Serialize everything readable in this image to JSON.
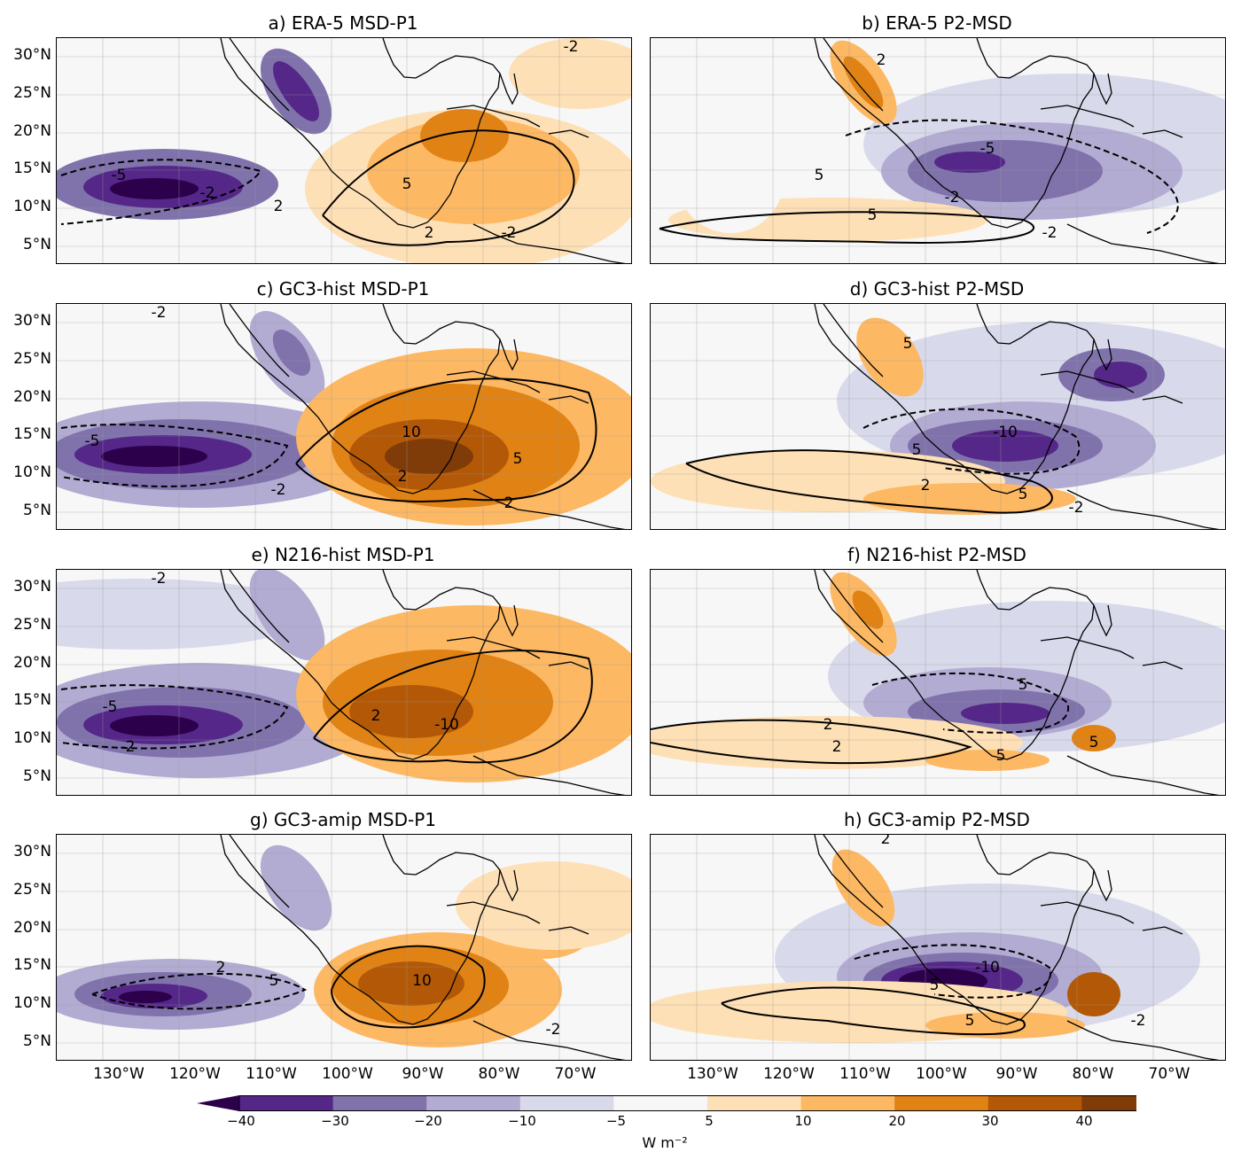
{
  "panels": [
    {
      "title": "a)  ERA-5 MSD-P1",
      "contour_labels": [
        "-2",
        "-5",
        "-2",
        "2",
        "2",
        "5",
        "-2"
      ]
    },
    {
      "title": "b) ERA-5 P2-MSD",
      "contour_labels": [
        "2",
        "-5",
        "-2",
        "5",
        "-2",
        "5"
      ]
    },
    {
      "title": "c)  GC3-hist MSD-P1",
      "contour_labels": [
        "-2",
        "-5",
        "-2",
        "10",
        "2",
        "5",
        "2"
      ]
    },
    {
      "title": "d) GC3-hist P2-MSD",
      "contour_labels": [
        "5",
        "-10",
        "5",
        "2",
        "5",
        "-2"
      ]
    },
    {
      "title": "e)  N216-hist MSD-P1",
      "contour_labels": [
        "-2",
        "-5",
        "-2",
        "-10",
        "2"
      ]
    },
    {
      "title": "f) N216-hist P2-MSD",
      "contour_labels": [
        "5",
        "2",
        "2",
        "5",
        "5"
      ]
    },
    {
      "title": "g)  GC3-amip MSD-P1",
      "contour_labels": [
        "2",
        "5",
        "10",
        "-2"
      ]
    },
    {
      "title": "h) GC3-amip P2-MSD",
      "contour_labels": [
        "2",
        "-10",
        "5",
        "5",
        "-2"
      ]
    }
  ],
  "lat_labels": [
    "30°N",
    "25°N",
    "20°N",
    "15°N",
    "10°N",
    "5°N"
  ],
  "lon_labels": [
    "130°W",
    "120°W",
    "110°W",
    "100°W",
    "90°W",
    "80°W",
    "70°W"
  ],
  "colorbar": {
    "ticks": [
      "−40",
      "−30",
      "−20",
      "−10",
      "−5",
      "5",
      "10",
      "20",
      "30",
      "40"
    ],
    "units": "W m⁻²",
    "colors": [
      "#2d004b",
      "#542788",
      "#8073ac",
      "#b2abd2",
      "#d8daeb",
      "#f7f7f7",
      "#fee0b6",
      "#fdb863",
      "#e08214",
      "#b35806",
      "#7f3b08"
    ]
  }
}
